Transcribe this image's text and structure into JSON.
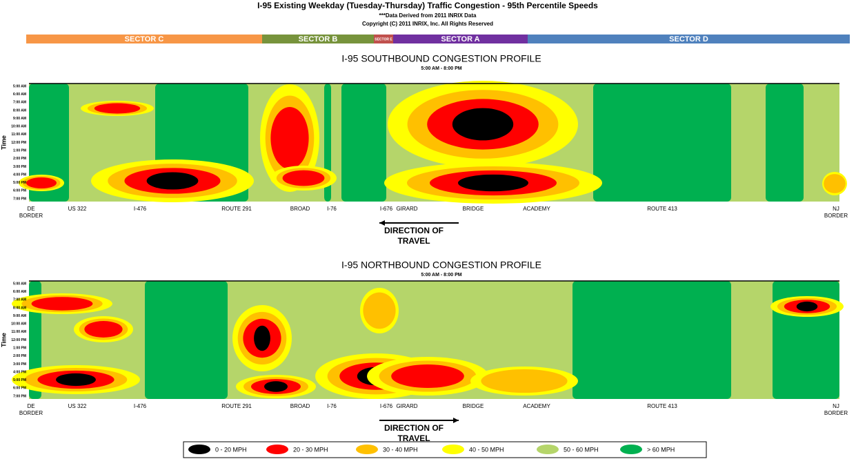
{
  "header": {
    "title": "I-95 Existing Weekday (Tuesday-Thursday) Traffic Congestion - 95th Percentile Speeds",
    "note": "***Data Derived from 2011 INRIX Data",
    "copyright": "Copyright (C) 2011 INRIX, Inc. All Rights Reserved"
  },
  "sectors": [
    {
      "label": "SECTOR C",
      "color": "#f79646"
    },
    {
      "label": "SECTOR B",
      "color": "#77933c"
    },
    {
      "label": "SECTOR E",
      "color": "#c0504d"
    },
    {
      "label": "SECTOR A",
      "color": "#7030a0"
    },
    {
      "label": "SECTOR D",
      "color": "#4f81bd"
    }
  ],
  "panels": [
    {
      "title": "I-95 SOUTHBOUND CONGESTION PROFILE",
      "subtitle": "5:00 AM - 8:00 PM",
      "direction": [
        "DIRECTION OF",
        "TRAVEL"
      ]
    },
    {
      "title": "I-95 NORTHBOUND CONGESTION PROFILE",
      "subtitle": "5:00 AM - 8:00 PM",
      "direction": [
        "DIRECTION OF",
        "TRAVEL"
      ]
    }
  ],
  "time_axis_title": "Time",
  "time_labels": [
    "5:00 AM",
    "6:00 AM",
    "7:00 AM",
    "8:00 AM",
    "9:00 AM",
    "10:00 AM",
    "11:00 AM",
    "12:00 PM",
    "1:00 PM",
    "2:00 PM",
    "3:00 PM",
    "4:00 PM",
    "5:00 PM",
    "6:00 PM",
    "7:00 PM"
  ],
  "locations": [
    [
      "DE",
      "BORDER"
    ],
    [
      "US 322"
    ],
    [
      "I-476"
    ],
    [
      "ROUTE 291"
    ],
    [
      "BROAD"
    ],
    [
      "I-76"
    ],
    [
      "I-676"
    ],
    [
      "GIRARD"
    ],
    [
      "BRIDGE"
    ],
    [
      "ACADEMY"
    ],
    [
      "ROUTE 413"
    ],
    [
      "NJ",
      "BORDER"
    ]
  ],
  "legend": [
    {
      "label": "0 - 20 MPH",
      "color": "#000000"
    },
    {
      "label": "20 - 30 MPH",
      "color": "#ff0000"
    },
    {
      "label": "30 - 40 MPH",
      "color": "#ffc000"
    },
    {
      "label": "40 - 50 MPH",
      "color": "#ffff00"
    },
    {
      "label": "50 - 60 MPH",
      "color": "#b5d56a"
    },
    {
      "label": "> 60 MPH",
      "color": "#00b050"
    }
  ]
}
